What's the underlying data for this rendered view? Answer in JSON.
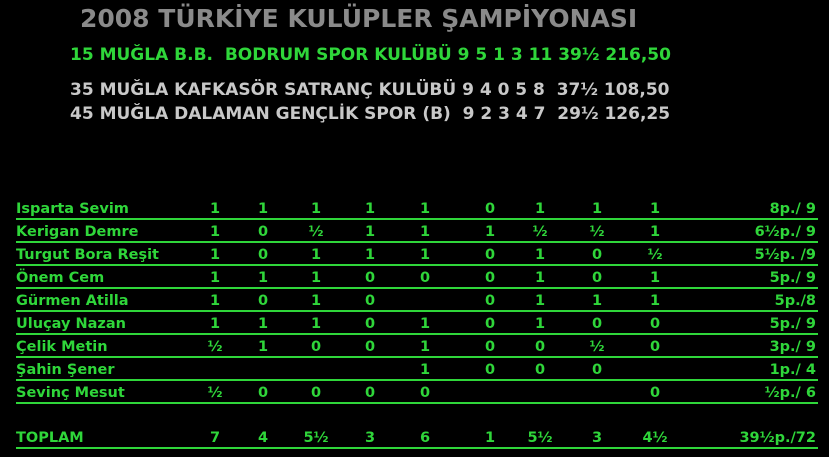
{
  "header": {
    "title": "2008 TÜRKİYE KULÜPLER ŞAMPİYONASI",
    "teams": [
      "15 MUĞLA B.B.  BODRUM SPOR KULÜBÜ 9 5 1 3 11 39½ 216,50",
      "35 MUĞLA KAFKASÖR SATRANÇ KULÜBÜ 9 4 0 5 8  37½ 108,50",
      "45 MUĞLA DALAMAN GENÇLİK SPOR (B)  9 2 3 4 7  29½ 126,25"
    ]
  },
  "table": {
    "rows": [
      [
        "Isparta Sevim",
        "1",
        "1",
        "1",
        "1",
        "1",
        "0",
        "1",
        "1",
        "1",
        "8p./ 9"
      ],
      [
        "Kerigan Demre",
        "1",
        "0",
        "½",
        "1",
        "1",
        "1",
        "½",
        "½",
        "1",
        "6½p./ 9"
      ],
      [
        "Turgut Bora Reşit",
        "1",
        "0",
        "1",
        "1",
        "1",
        "0",
        "1",
        "0",
        "½",
        "5½p. /9"
      ],
      [
        "Önem Cem",
        "1",
        "1",
        "1",
        "0",
        "0",
        "0",
        "1",
        "0",
        "1",
        "5p./ 9"
      ],
      [
        "Gürmen Atilla",
        "1",
        "0",
        "1",
        "0",
        null,
        "0",
        "1",
        "1",
        "1",
        "5p./8"
      ],
      [
        "Uluçay Nazan",
        "1",
        "1",
        "1",
        "0",
        "1",
        "0",
        "1",
        "0",
        "0",
        "5p./ 9"
      ],
      [
        "Çelik Metin",
        "½",
        "1",
        "0",
        "0",
        "1",
        "0",
        "0",
        "½",
        "0",
        "3p./ 9"
      ],
      [
        "Şahin Şener",
        null,
        null,
        null,
        null,
        "1",
        "0",
        "0",
        "0",
        null,
        "1p./ 4"
      ],
      [
        "Sevinç Mesut",
        "½",
        "0",
        "0",
        "0",
        "0",
        null,
        null,
        null,
        "0",
        "½p./ 6"
      ]
    ],
    "total": [
      "TOPLAM",
      "7",
      "4",
      "5½",
      "3",
      "6",
      "1",
      "5½",
      "3",
      "4½",
      "39½p./72"
    ]
  }
}
